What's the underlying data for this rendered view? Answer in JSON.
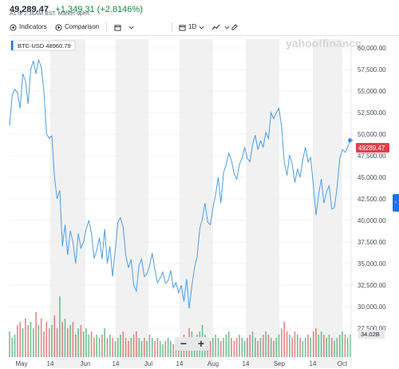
{
  "quote": {
    "price": "49,289.47",
    "change": "+1,349.31 (+2.8146%)",
    "status": "As of 2:36AM BST. Market open."
  },
  "toolbar": {
    "indicators": "Indicators",
    "comparison": "Comparison",
    "interval": "1D"
  },
  "chart": {
    "watermark": "yahoo!finance",
    "series_label": "BTC-USD 48960.79",
    "last_price": "49289.47",
    "volume_label": "34.02B",
    "zoom_out": "−",
    "zoom_in": "+",
    "colors": {
      "line": "#4c9ee8",
      "price_badge": "#e0424b",
      "up": "#3fae6f",
      "down": "#e05a5a",
      "band": "#f1f1f1"
    }
  },
  "chart_data": {
    "type": "line",
    "x_ticks": [
      "May",
      "14",
      "Jun",
      "14",
      "Jul",
      "14",
      "Aug",
      "14",
      "Sep",
      "14",
      "Oct"
    ],
    "y_ticks": [
      "60,000.00",
      "57,500.00",
      "55,000.00",
      "52,500.00",
      "50,000.00",
      "47,500.00",
      "45,000.00",
      "42,500.00",
      "40,000.00",
      "37,500.00",
      "35,000.00",
      "32,500.00",
      "30,000.00",
      "27,500.00"
    ],
    "ylim": [
      27500,
      60000
    ],
    "series": [
      {
        "values": [
          51000,
          54500,
          55200,
          54800,
          53000,
          57000,
          56200,
          53500,
          57500,
          58500,
          57000,
          58600,
          57800,
          55000,
          50000,
          49500,
          49800,
          45000,
          42500,
          43500,
          37000,
          39500,
          36000,
          38800,
          37500,
          35000,
          38500,
          36800,
          37500,
          39000,
          40000,
          38500,
          35600,
          36500,
          38000,
          35500,
          39000,
          35000,
          37000,
          33500,
          36500,
          39800,
          40300,
          39200,
          36000,
          34500,
          35500,
          32500,
          31800,
          34800,
          35500,
          33500,
          33800,
          34700,
          36200,
          34300,
          32800,
          33300,
          34000,
          32700,
          33000,
          34200,
          32200,
          32800,
          31600,
          32500,
          30600,
          33200,
          29800,
          32400,
          34500,
          35800,
          39000,
          40200,
          42000,
          39800,
          39500,
          41500,
          43000,
          45000,
          42000,
          45500,
          46500,
          47800,
          47000,
          45400,
          44800,
          46500,
          47200,
          48500,
          47200,
          46800,
          48800,
          49900,
          48200,
          49200,
          48500,
          50200,
          49500,
          52500,
          51800,
          52500,
          53000,
          50800,
          46800,
          45200,
          47600,
          46500,
          44400,
          46000,
          45000,
          47000,
          48500,
          46800,
          47300,
          44000,
          40600,
          43000,
          44800,
          42000,
          43300,
          44000,
          41300,
          41500,
          43800,
          47200,
          48200,
          47900,
          48500,
          49300
        ]
      }
    ],
    "volume": [
      0.4,
      0.3,
      0.35,
      0.5,
      0.55,
      0.45,
      0.6,
      0.5,
      0.55,
      0.45,
      0.7,
      0.5,
      0.6,
      0.4,
      0.55,
      0.45,
      0.5,
      0.65,
      0.45,
      0.95,
      0.55,
      0.6,
      0.45,
      0.5,
      0.55,
      0.35,
      0.45,
      0.5,
      0.4,
      0.45,
      0.35,
      0.4,
      0.3,
      0.35,
      0.3,
      0.35,
      0.45,
      0.3,
      0.35,
      0.3,
      0.25,
      0.3,
      0.35,
      0.4,
      0.3,
      0.25,
      0.3,
      0.35,
      0.4,
      0.3,
      0.25,
      0.3,
      0.25,
      0.35,
      0.3,
      0.25,
      0.3,
      0.25,
      0.2,
      0.25,
      0.3,
      0.25,
      0.2,
      0.3,
      0.25,
      0.2,
      0.35,
      0.25,
      0.45,
      0.4,
      0.3,
      0.35,
      0.4,
      0.5,
      0.35,
      0.3,
      0.25,
      0.3,
      0.35,
      0.3,
      0.25,
      0.3,
      0.35,
      0.4,
      0.3,
      0.25,
      0.3,
      0.35,
      0.3,
      0.25,
      0.3,
      0.35,
      0.4,
      0.3,
      0.25,
      0.3,
      0.35,
      0.4,
      0.35,
      0.3,
      0.25,
      0.3,
      0.35,
      0.45,
      0.55,
      0.4,
      0.35,
      0.3,
      0.4,
      0.35,
      0.3,
      0.25,
      0.3,
      0.35,
      0.3,
      0.4,
      0.45,
      0.35,
      0.4,
      0.35,
      0.3,
      0.35,
      0.3,
      0.25,
      0.3,
      0.35,
      0.4,
      0.35,
      0.3,
      0.35
    ],
    "grid": true
  }
}
